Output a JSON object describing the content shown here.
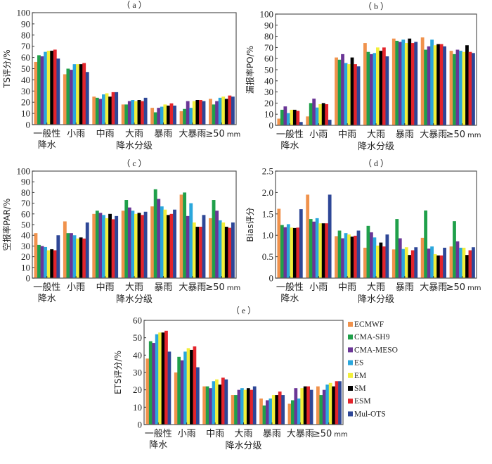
{
  "colors": {
    "ECMWF": "#f0924c",
    "CMA-SH9": "#1fa04a",
    "CMA-MESO": "#6a3596",
    "ES": "#2aa7dc",
    "EM": "#f2ef3a",
    "SM": "#000000",
    "ESM": "#e3242b",
    "Mul-OTS": "#2e4797"
  },
  "chart_data": [
    {
      "id": "a",
      "type": "bar",
      "title": "（ a ）",
      "ylabel": "TS评分/%",
      "xlabel": "降水分级",
      "ylim": [
        0,
        100
      ],
      "yticks": [
        "0",
        "10",
        "20",
        "30",
        "40",
        "50",
        "60",
        "70",
        "80",
        "90",
        "100"
      ],
      "yticks_values": [
        0,
        10,
        20,
        30,
        40,
        50,
        60,
        70,
        80,
        90,
        100
      ],
      "categories": [
        [
          "一般性",
          "降水"
        ],
        [
          "小雨"
        ],
        [
          "中雨"
        ],
        [
          "大雨"
        ],
        [
          "暴雨"
        ],
        [
          "大暴雨"
        ],
        [
          "≥50",
          "mm"
        ]
      ],
      "series": [
        {
          "name": "ECMWF",
          "values": [
            56,
            45,
            25,
            18,
            15,
            12,
            23
          ]
        },
        {
          "name": "CMA-SH9",
          "values": [
            62,
            50,
            24,
            18,
            11,
            14,
            18
          ]
        },
        {
          "name": "CMA-MESO",
          "values": [
            61,
            49,
            23,
            21,
            15,
            21,
            21
          ]
        },
        {
          "name": "ES",
          "values": [
            65,
            54,
            27,
            22,
            16,
            15,
            24
          ]
        },
        {
          "name": "EM",
          "values": [
            66,
            54,
            28,
            21,
            18,
            21,
            25
          ]
        },
        {
          "name": "SM",
          "values": [
            66,
            54,
            25,
            22,
            17,
            22,
            23
          ]
        },
        {
          "name": "ESM",
          "values": [
            67,
            55,
            29,
            21,
            19,
            22,
            26
          ]
        },
        {
          "name": "Mul-OTS",
          "values": [
            59,
            47,
            29,
            24,
            17,
            21,
            25
          ]
        }
      ]
    },
    {
      "id": "b",
      "type": "bar",
      "title": "（ b ）",
      "ylabel": "漏报率PO/%",
      "xlabel": "降水分级",
      "ylim": [
        0,
        100
      ],
      "yticks": [
        "0",
        "10",
        "20",
        "30",
        "40",
        "50",
        "60",
        "70",
        "80",
        "90",
        "100"
      ],
      "yticks_values": [
        0,
        10,
        20,
        30,
        40,
        50,
        60,
        70,
        80,
        90,
        100
      ],
      "categories": [
        [
          "一般性",
          "降水"
        ],
        [
          "小雨"
        ],
        [
          "中雨"
        ],
        [
          "大雨"
        ],
        [
          "暴雨"
        ],
        [
          "大暴雨"
        ],
        [
          "≥50",
          "mm"
        ]
      ],
      "series": [
        {
          "name": "ECMWF",
          "values": [
            6,
            8,
            61,
            74,
            78,
            79,
            67
          ]
        },
        {
          "name": "CMA-SH9",
          "values": [
            14,
            20,
            59,
            66,
            76,
            68,
            64
          ]
        },
        {
          "name": "CMA-MESO",
          "values": [
            17,
            24,
            64,
            64,
            75,
            71,
            68
          ]
        },
        {
          "name": "ES",
          "values": [
            11,
            16,
            56,
            65,
            77,
            77,
            67
          ]
        },
        {
          "name": "EM",
          "values": [
            14,
            19,
            55,
            70,
            74,
            72,
            66
          ]
        },
        {
          "name": "SM",
          "values": [
            14,
            20,
            61,
            67,
            78,
            73,
            72
          ]
        },
        {
          "name": "ESM",
          "values": [
            13,
            19,
            55,
            70,
            74,
            73,
            66
          ]
        },
        {
          "name": "Mul-OTS",
          "values": [
            3,
            5,
            53,
            62,
            75,
            71,
            65
          ]
        }
      ]
    },
    {
      "id": "c",
      "type": "bar",
      "title": "（ c ）",
      "ylabel": "空报率PAR/%",
      "xlabel": "降水分级",
      "ylim": [
        0,
        100
      ],
      "yticks": [
        "0",
        "10",
        "20",
        "30",
        "40",
        "50",
        "60",
        "70",
        "80",
        "90",
        "100"
      ],
      "yticks_values": [
        0,
        10,
        20,
        30,
        40,
        50,
        60,
        70,
        80,
        90,
        100
      ],
      "categories": [
        [
          "一般性",
          "降水"
        ],
        [
          "小雨"
        ],
        [
          "中雨"
        ],
        [
          "大雨"
        ],
        [
          "暴雨"
        ],
        [
          "大暴雨"
        ],
        [
          "≥50",
          "mm"
        ]
      ],
      "series": [
        {
          "name": "ECMWF",
          "values": [
            42,
            53,
            60,
            63,
            67,
            78,
            56
          ]
        },
        {
          "name": "CMA-SH9",
          "values": [
            31,
            42,
            63,
            73,
            83,
            80,
            73
          ]
        },
        {
          "name": "CMA-MESO",
          "values": [
            30,
            42,
            61,
            66,
            74,
            58,
            63
          ]
        },
        {
          "name": "ES",
          "values": [
            29,
            40,
            59,
            63,
            67,
            70,
            54
          ]
        },
        {
          "name": "EM",
          "values": [
            26,
            37,
            56,
            60,
            64,
            52,
            52
          ]
        },
        {
          "name": "SM",
          "values": [
            27,
            38,
            60,
            61,
            59,
            48,
            48
          ]
        },
        {
          "name": "ESM",
          "values": [
            26,
            37,
            55,
            59,
            60,
            48,
            47
          ]
        },
        {
          "name": "Mul-OTS",
          "values": [
            40,
            52,
            58,
            62,
            64,
            59,
            52
          ]
        }
      ]
    },
    {
      "id": "d",
      "type": "bar",
      "title": "（ d ）",
      "ylabel": "Bias评分",
      "xlabel": "降水分级",
      "ylim": [
        0,
        2.5
      ],
      "yticks": [
        "0",
        "0.5",
        "1.0",
        "1.5",
        "2.0",
        "2.5"
      ],
      "yticks_values": [
        0,
        0.5,
        1.0,
        1.5,
        2.0,
        2.5
      ],
      "categories": [
        [
          "一般性",
          "降水"
        ],
        [
          "小雨"
        ],
        [
          "中雨"
        ],
        [
          "大雨"
        ],
        [
          "暴雨"
        ],
        [
          "大暴雨"
        ],
        [
          "≥50",
          "mm"
        ]
      ],
      "series": [
        {
          "name": "ECMWF",
          "values": [
            1.62,
            1.95,
            0.98,
            0.71,
            0.67,
            0.94,
            0.74
          ]
        },
        {
          "name": "CMA-SH9",
          "values": [
            1.24,
            1.38,
            1.11,
            1.22,
            1.38,
            1.58,
            1.33
          ]
        },
        {
          "name": "CMA-MESO",
          "values": [
            1.19,
            1.32,
            0.93,
            1.07,
            0.93,
            0.69,
            0.86
          ]
        },
        {
          "name": "ES",
          "values": [
            1.26,
            1.4,
            1.05,
            0.95,
            0.68,
            0.74,
            0.71
          ]
        },
        {
          "name": "EM",
          "values": [
            1.18,
            1.28,
            1.02,
            0.76,
            0.72,
            0.56,
            0.71
          ]
        },
        {
          "name": "SM",
          "values": [
            1.17,
            1.28,
            0.97,
            0.83,
            0.54,
            0.53,
            0.54
          ]
        },
        {
          "name": "ESM",
          "values": [
            1.18,
            1.28,
            0.99,
            0.74,
            0.65,
            0.53,
            0.65
          ]
        },
        {
          "name": "Mul-OTS",
          "values": [
            1.61,
            1.95,
            1.11,
            1.02,
            0.72,
            0.71,
            0.72
          ]
        }
      ]
    },
    {
      "id": "e",
      "type": "bar",
      "title": "（ e ）",
      "ylabel": "ETS评分/%",
      "xlabel": "降水分级",
      "ylim": [
        0,
        60
      ],
      "yticks": [
        "0",
        "10",
        "20",
        "30",
        "40",
        "50",
        "60"
      ],
      "yticks_values": [
        0,
        10,
        20,
        30,
        40,
        50,
        60
      ],
      "categories": [
        [
          "一般性",
          "降水"
        ],
        [
          "小雨"
        ],
        [
          "中雨"
        ],
        [
          "大雨"
        ],
        [
          "暴雨"
        ],
        [
          "大暴雨"
        ],
        [
          "≥50",
          "mm"
        ]
      ],
      "legend_position": "right",
      "legend": [
        "ECMWF",
        "CMA-SH9",
        "CMA-MESO",
        "ES",
        "EM",
        "SM",
        "ESM",
        "Mul-OTS"
      ],
      "series": [
        {
          "name": "ECMWF",
          "values": [
            38,
            30,
            22,
            17,
            15,
            12,
            22
          ]
        },
        {
          "name": "CMA-SH9",
          "values": [
            48,
            39,
            22,
            17,
            11,
            14,
            17
          ]
        },
        {
          "name": "CMA-MESO",
          "values": [
            47,
            37,
            21,
            20,
            14,
            21,
            20
          ]
        },
        {
          "name": "ES",
          "values": [
            52,
            42,
            25,
            21,
            15,
            15,
            23
          ]
        },
        {
          "name": "EM",
          "values": [
            53,
            44,
            26,
            20,
            17,
            21,
            24
          ]
        },
        {
          "name": "SM",
          "values": [
            53,
            43,
            23,
            21,
            17,
            22,
            22
          ]
        },
        {
          "name": "ESM",
          "values": [
            54,
            45,
            27,
            20,
            19,
            22,
            25
          ]
        },
        {
          "name": "Mul-OTS",
          "values": [
            42,
            33,
            26,
            22,
            17,
            20,
            25
          ]
        }
      ]
    }
  ]
}
